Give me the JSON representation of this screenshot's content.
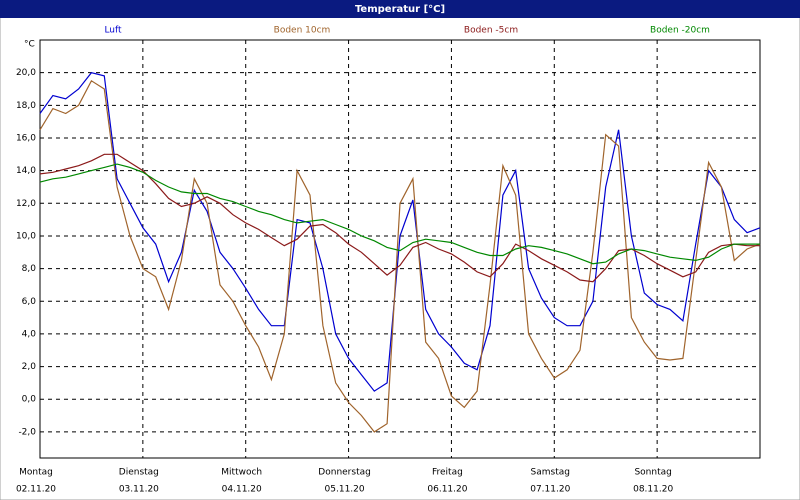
{
  "chart_data": {
    "type": "line",
    "title": "Temperatur [°C]",
    "y_unit": "°C",
    "x": [
      0,
      0.125,
      0.25,
      0.375,
      0.5,
      0.625,
      0.75,
      0.875,
      1,
      1.125,
      1.25,
      1.375,
      1.5,
      1.625,
      1.75,
      1.875,
      2,
      2.125,
      2.25,
      2.375,
      2.5,
      2.625,
      2.75,
      2.875,
      3,
      3.125,
      3.25,
      3.375,
      3.5,
      3.625,
      3.75,
      3.875,
      4,
      4.125,
      4.25,
      4.375,
      4.5,
      4.625,
      4.75,
      4.875,
      5,
      5.125,
      5.25,
      5.375,
      5.5,
      5.625,
      5.75,
      5.875,
      6,
      6.125,
      6.25,
      6.375,
      6.5,
      6.625,
      6.75,
      6.875,
      7
    ],
    "xlim": [
      0,
      7
    ],
    "xticks": [
      {
        "value": 0,
        "label": "Montag"
      },
      {
        "value": 1,
        "label": "Dienstag"
      },
      {
        "value": 2,
        "label": "Mittwoch"
      },
      {
        "value": 3,
        "label": "Donnerstag"
      },
      {
        "value": 4,
        "label": "Freitag"
      },
      {
        "value": 5,
        "label": "Samstag"
      },
      {
        "value": 6,
        "label": "Sonntag"
      }
    ],
    "xtick_dates": [
      "02.11.20",
      "03.11.20",
      "04.11.20",
      "05.11.20",
      "06.11.20",
      "07.11.20",
      "08.11.20"
    ],
    "ylim": [
      -3.6,
      22
    ],
    "yticks": [
      {
        "value": -2,
        "label": "-2,0"
      },
      {
        "value": 0,
        "label": "0,0"
      },
      {
        "value": 2,
        "label": "2,0"
      },
      {
        "value": 4,
        "label": "4,0"
      },
      {
        "value": 6,
        "label": "6,0"
      },
      {
        "value": 8,
        "label": "8,0"
      },
      {
        "value": 10,
        "label": "10,0"
      },
      {
        "value": 12,
        "label": "12,0"
      },
      {
        "value": 14,
        "label": "14,0"
      },
      {
        "value": 16,
        "label": "16,0"
      },
      {
        "value": 18,
        "label": "18,0"
      },
      {
        "value": 20,
        "label": "20,0"
      }
    ],
    "grid": true,
    "series": [
      {
        "name": "Luft",
        "color": "#0000d0",
        "values": [
          17.5,
          18.6,
          18.4,
          19,
          20,
          19.8,
          13.5,
          12,
          10.5,
          9.5,
          7.2,
          9,
          12.8,
          11.5,
          9,
          8,
          6.8,
          5.5,
          4.5,
          4.5,
          11,
          10.8,
          8,
          4,
          2.5,
          1.5,
          0.5,
          1,
          10,
          12.2,
          5.5,
          4,
          3.2,
          2.2,
          1.8,
          4.5,
          12.5,
          14,
          8,
          6.2,
          5,
          4.5,
          4.5,
          6,
          13,
          16.5,
          10,
          6.5,
          5.8,
          5.5,
          4.8,
          9.5,
          14,
          13,
          11,
          10.2,
          10.5
        ]
      },
      {
        "name": "Boden 10cm",
        "color": "#a0642c",
        "values": [
          16.5,
          17.8,
          17.5,
          18,
          19.5,
          19,
          13,
          10,
          8,
          7.5,
          5.5,
          8.5,
          13.5,
          12,
          7,
          6,
          4.5,
          3.2,
          1.2,
          4,
          14,
          12.5,
          4.5,
          1,
          -0.2,
          -1,
          -2,
          -1.5,
          12,
          13.5,
          3.5,
          2.5,
          0.2,
          -0.5,
          0.5,
          7,
          14.3,
          12.5,
          4,
          2.5,
          1.3,
          1.8,
          3,
          9,
          16.2,
          15.5,
          5,
          3.5,
          2.5,
          2.4,
          2.5,
          8.5,
          14.5,
          13,
          8.5,
          9.2,
          9.5
        ]
      },
      {
        "name": "Boden -5cm",
        "color": "#8b1a1a",
        "values": [
          13.8,
          13.9,
          14.1,
          14.3,
          14.6,
          15,
          15,
          14.5,
          14,
          13.2,
          12.3,
          11.8,
          12,
          12.4,
          12,
          11.3,
          10.8,
          10.4,
          9.9,
          9.4,
          9.8,
          10.6,
          10.7,
          10.2,
          9.5,
          9,
          8.3,
          7.6,
          8.2,
          9.3,
          9.6,
          9.2,
          8.9,
          8.4,
          7.8,
          7.5,
          8.3,
          9.5,
          9.1,
          8.6,
          8.2,
          7.8,
          7.3,
          7.2,
          8,
          9.1,
          9.2,
          8.8,
          8.3,
          7.9,
          7.5,
          7.8,
          9,
          9.4,
          9.5,
          9.4,
          9.4
        ]
      },
      {
        "name": "Boden -20cm",
        "color": "#008800",
        "values": [
          13.3,
          13.5,
          13.6,
          13.8,
          14,
          14.2,
          14.4,
          14.2,
          13.9,
          13.4,
          13,
          12.7,
          12.6,
          12.6,
          12.3,
          12.1,
          11.8,
          11.5,
          11.3,
          11,
          10.8,
          10.9,
          11,
          10.7,
          10.4,
          10,
          9.7,
          9.3,
          9.1,
          9.6,
          9.8,
          9.7,
          9.6,
          9.3,
          9,
          8.8,
          8.8,
          9.2,
          9.4,
          9.3,
          9.1,
          8.9,
          8.6,
          8.3,
          8.4,
          8.9,
          9.2,
          9.1,
          8.9,
          8.7,
          8.6,
          8.5,
          8.7,
          9.2,
          9.5,
          9.5,
          9.5
        ]
      }
    ]
  }
}
